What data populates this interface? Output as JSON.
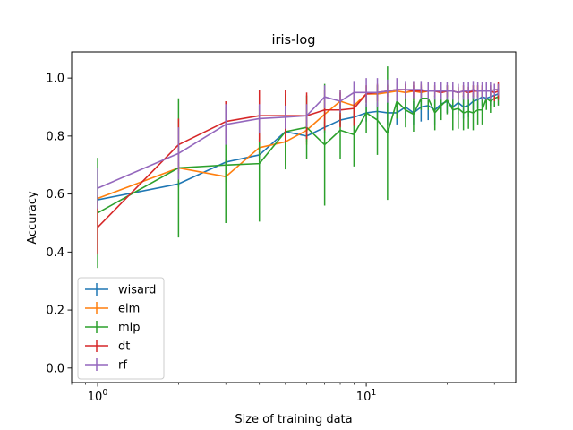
{
  "chart_data": {
    "type": "line",
    "title": "iris-log",
    "xlabel": "Size of training data",
    "ylabel": "Accuracy",
    "xscale": "log",
    "xlim": [
      0.8,
      36
    ],
    "ylim": [
      -0.05,
      1.09
    ],
    "x_ticks": [
      1,
      10
    ],
    "x_tick_labels": [
      "10^0",
      "10^1"
    ],
    "y_ticks": [
      0.0,
      0.2,
      0.4,
      0.6,
      0.8,
      1.0
    ],
    "y_tick_labels": [
      "0.0",
      "0.2",
      "0.4",
      "0.6",
      "0.8",
      "1.0"
    ],
    "grid": false,
    "legend_position": "lower-left",
    "x": [
      1,
      2,
      3,
      4,
      5,
      6,
      7,
      8,
      9,
      10,
      11,
      12,
      13,
      14,
      15,
      16,
      17,
      18,
      19,
      20,
      21,
      22,
      23,
      24,
      25,
      26,
      27,
      28,
      29,
      30,
      31
    ],
    "series": [
      {
        "name": "wisard",
        "color": "#1f77b4",
        "values": [
          0.58,
          0.635,
          0.71,
          0.735,
          0.815,
          0.8,
          0.83,
          0.855,
          0.865,
          0.88,
          0.885,
          0.88,
          0.88,
          0.9,
          0.88,
          0.9,
          0.905,
          0.89,
          0.91,
          0.92,
          0.9,
          0.915,
          0.9,
          0.905,
          0.92,
          0.925,
          0.935,
          0.93,
          0.935,
          0.94,
          0.945
        ],
        "errors": [
          0.01,
          0.01,
          0.01,
          0.01,
          0.02,
          0.02,
          0.02,
          0.02,
          0.02,
          0.03,
          0.03,
          0.04,
          0.04,
          0.04,
          0.04,
          0.05,
          0.05,
          0.05,
          0.04,
          0.04,
          0.04,
          0.04,
          0.04,
          0.04,
          0.03,
          0.03,
          0.03,
          0.03,
          0.03,
          0.02,
          0.02
        ]
      },
      {
        "name": "elm",
        "color": "#ff7f0e",
        "values": [
          0.585,
          0.69,
          0.66,
          0.76,
          0.78,
          0.82,
          0.875,
          0.92,
          0.905,
          0.945,
          0.945,
          0.95,
          0.955,
          0.95,
          0.955,
          0.95,
          0.955,
          0.955,
          0.95,
          0.955,
          0.955,
          0.95,
          0.955,
          0.95,
          0.955,
          0.955,
          0.955,
          0.955,
          0.955,
          0.96,
          0.96
        ],
        "errors": [
          0.01,
          0.02,
          0.02,
          0.03,
          0.08,
          0.05,
          0.05,
          0.04,
          0.05,
          0.03,
          0.03,
          0.03,
          0.03,
          0.03,
          0.03,
          0.03,
          0.02,
          0.02,
          0.02,
          0.02,
          0.02,
          0.02,
          0.02,
          0.02,
          0.02,
          0.02,
          0.02,
          0.02,
          0.02,
          0.02,
          0.02
        ]
      },
      {
        "name": "mlp",
        "color": "#2ca02c",
        "values": [
          0.535,
          0.69,
          0.7,
          0.705,
          0.815,
          0.83,
          0.77,
          0.82,
          0.805,
          0.88,
          0.855,
          0.81,
          0.92,
          0.89,
          0.875,
          0.93,
          0.93,
          0.88,
          0.905,
          0.925,
          0.89,
          0.895,
          0.88,
          0.885,
          0.88,
          0.89,
          0.89,
          0.93,
          0.92,
          0.93,
          0.935
        ],
        "errors": [
          0.19,
          0.24,
          0.2,
          0.2,
          0.13,
          0.11,
          0.21,
          0.1,
          0.11,
          0.07,
          0.12,
          0.23,
          0.06,
          0.06,
          0.06,
          0.04,
          0.04,
          0.06,
          0.05,
          0.05,
          0.07,
          0.07,
          0.06,
          0.06,
          0.06,
          0.05,
          0.05,
          0.04,
          0.04,
          0.03,
          0.03
        ]
      },
      {
        "name": "dt",
        "color": "#d62728",
        "values": [
          0.485,
          0.77,
          0.85,
          0.87,
          0.87,
          0.87,
          0.89,
          0.89,
          0.895,
          0.945,
          0.95,
          0.955,
          0.96,
          0.96,
          0.955,
          0.955,
          0.955,
          0.955,
          0.95,
          0.955,
          0.955,
          0.95,
          0.955,
          0.95,
          0.955,
          0.955,
          0.955,
          0.955,
          0.955,
          0.95,
          0.955
        ],
        "errors": [
          0.09,
          0.09,
          0.07,
          0.09,
          0.09,
          0.08,
          0.07,
          0.06,
          0.06,
          0.03,
          0.03,
          0.02,
          0.02,
          0.02,
          0.02,
          0.02,
          0.02,
          0.02,
          0.02,
          0.02,
          0.02,
          0.02,
          0.02,
          0.02,
          0.02,
          0.02,
          0.02,
          0.02,
          0.02,
          0.03,
          0.03
        ]
      },
      {
        "name": "rf",
        "color": "#9467bd",
        "values": [
          0.62,
          0.74,
          0.84,
          0.86,
          0.865,
          0.87,
          0.935,
          0.92,
          0.95,
          0.95,
          0.95,
          0.955,
          0.96,
          0.96,
          0.96,
          0.96,
          0.955,
          0.955,
          0.955,
          0.955,
          0.955,
          0.95,
          0.955,
          0.955,
          0.96,
          0.955,
          0.955,
          0.955,
          0.955,
          0.96,
          0.96
        ],
        "errors": [
          0.07,
          0.09,
          0.07,
          0.05,
          0.04,
          0.04,
          0.04,
          0.04,
          0.04,
          0.05,
          0.05,
          0.04,
          0.04,
          0.03,
          0.03,
          0.03,
          0.03,
          0.03,
          0.03,
          0.03,
          0.03,
          0.03,
          0.03,
          0.03,
          0.03,
          0.03,
          0.03,
          0.03,
          0.03,
          0.02,
          0.02
        ]
      }
    ]
  }
}
